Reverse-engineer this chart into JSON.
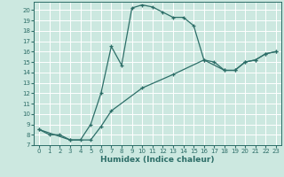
{
  "title": "",
  "xlabel": "Humidex (Indice chaleur)",
  "ylabel": "",
  "bg_color": "#cce8e0",
  "grid_color": "#ffffff",
  "line_color": "#2d6e68",
  "xlim": [
    -0.5,
    23.5
  ],
  "ylim": [
    7,
    20.8
  ],
  "yticks": [
    7,
    8,
    9,
    10,
    11,
    12,
    13,
    14,
    15,
    16,
    17,
    18,
    19,
    20
  ],
  "xticks": [
    0,
    1,
    2,
    3,
    4,
    5,
    6,
    7,
    8,
    9,
    10,
    11,
    12,
    13,
    14,
    15,
    16,
    17,
    18,
    19,
    20,
    21,
    22,
    23
  ],
  "curve1_x": [
    0,
    1,
    2,
    3,
    4,
    5,
    6,
    7,
    8,
    9,
    10,
    11,
    12,
    13,
    14,
    15,
    16,
    17,
    18,
    19,
    20,
    21,
    22,
    23
  ],
  "curve1_y": [
    8.5,
    8.0,
    8.0,
    7.5,
    7.5,
    9.0,
    12.0,
    16.5,
    14.7,
    20.2,
    20.5,
    20.3,
    19.8,
    19.3,
    19.3,
    18.5,
    15.2,
    15.0,
    14.2,
    14.2,
    15.0,
    15.2,
    15.8,
    16.0
  ],
  "curve2_x": [
    0,
    3,
    5,
    6,
    7,
    10,
    13,
    16,
    18,
    19,
    20,
    21,
    22,
    23
  ],
  "curve2_y": [
    8.5,
    7.5,
    7.5,
    8.8,
    10.3,
    12.5,
    13.8,
    15.2,
    14.2,
    14.2,
    15.0,
    15.2,
    15.8,
    16.0
  ],
  "tick_fontsize": 5.0,
  "xlabel_fontsize": 6.5,
  "marker_size": 3,
  "linewidth": 0.9
}
